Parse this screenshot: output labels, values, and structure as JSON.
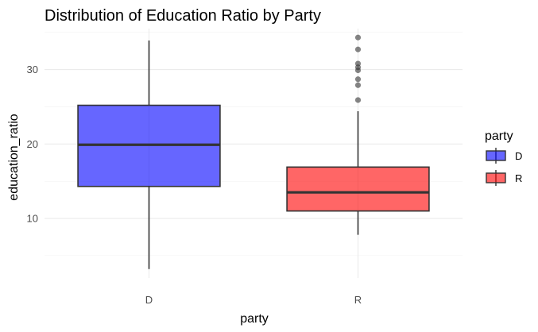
{
  "chart_data": {
    "type": "boxplot",
    "title": "Distribution of Education Ratio by Party",
    "xlabel": "party",
    "ylabel": "education_ratio",
    "categories": [
      "D",
      "R"
    ],
    "ylim": [
      2,
      35.5
    ],
    "yticks": [
      10,
      20,
      30
    ],
    "grid": true,
    "legend": {
      "title": "party",
      "position": "right",
      "entries": [
        {
          "label": "D",
          "color": "#0000ff"
        },
        {
          "label": "R",
          "color": "#ff0000"
        }
      ]
    },
    "boxes": [
      {
        "category": "D",
        "min": 3.2,
        "q1": 14.3,
        "median": 19.9,
        "q3": 25.2,
        "max": 33.9,
        "outliers": [],
        "color": "#0000ff"
      },
      {
        "category": "R",
        "min": 7.8,
        "q1": 11.0,
        "median": 13.5,
        "q3": 16.9,
        "max": 24.4,
        "outliers": [
          25.9,
          27.9,
          28.7,
          29.9,
          30.3,
          30.8,
          32.7,
          34.3
        ],
        "color": "#ff0000"
      }
    ],
    "box_opacity": 0.6
  }
}
